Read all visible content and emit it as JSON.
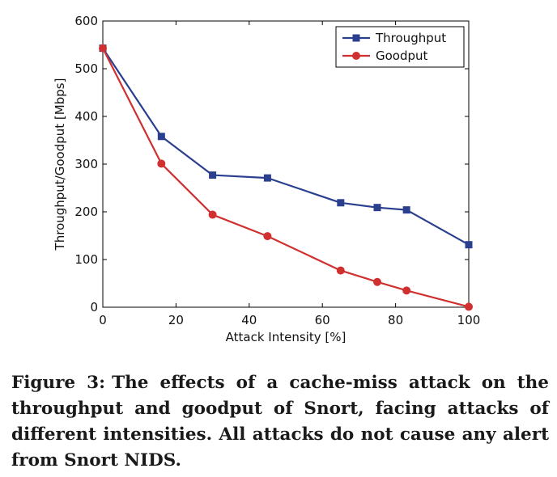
{
  "chart_data": {
    "type": "line",
    "xlabel": "Attack Intensity [%]",
    "ylabel": "Throughput/Goodput [Mbps]",
    "xlim": [
      0,
      100
    ],
    "ylim": [
      0,
      600
    ],
    "xticks": [
      0,
      20,
      40,
      60,
      80,
      100
    ],
    "yticks": [
      0,
      100,
      200,
      300,
      400,
      500,
      600
    ],
    "grid": false,
    "legend_position": "top-right",
    "series": [
      {
        "name": "Throughput",
        "color": "#2b3f8f",
        "marker": "square",
        "x": [
          0,
          16,
          30,
          45,
          65,
          75,
          83,
          100
        ],
        "y": [
          543,
          358,
          277,
          271,
          219,
          209,
          204,
          131
        ]
      },
      {
        "name": "Goodput",
        "color": "#d03030",
        "marker": "circle",
        "x": [
          0,
          16,
          30,
          45,
          65,
          75,
          83,
          100
        ],
        "y": [
          543,
          301,
          194,
          149,
          77,
          53,
          35,
          1
        ]
      }
    ]
  },
  "caption": {
    "label": "Figure 3:",
    "text": "The effects of a cache-miss attack on the throughput and goodput of Snort, facing attacks of different intensities. All attacks do not cause any alert from Snort NIDS."
  }
}
